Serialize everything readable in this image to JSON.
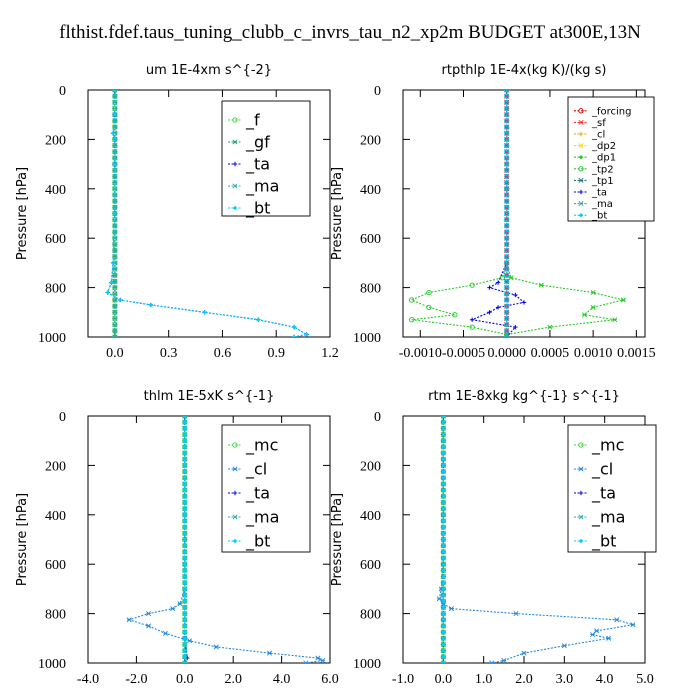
{
  "figure": {
    "title": "flthist.fdef.taus_tuning_clubb_c_invrs_tau_n2_xp2m  BUDGET at300E,13N"
  },
  "colors": {
    "f": "#33dd33",
    "gf": "#229977",
    "ta": "#0000ee",
    "ma": "#33aaaa",
    "bt": "#00ccff",
    "forcing": "#dd0000",
    "sf": "#ff3333",
    "cl": "#ddaa00",
    "dp2": "#ffdd00",
    "dp1": "#22cc22",
    "tp2": "#22cc22",
    "tp1": "#227777",
    "mc": "#33dd33",
    "cl2": "#2288dd"
  },
  "chart_data": [
    {
      "type": "line",
      "title": "um   1E-4xm s^{-2}",
      "ylabel": "Pressure [hPa]",
      "xlim": [
        -0.15,
        1.2
      ],
      "ylim": [
        1000,
        0
      ],
      "xticks": [
        "0.0",
        "0.3",
        "0.6",
        "0.9",
        "1.2"
      ],
      "xtick_values": [
        0,
        0.3,
        0.6,
        0.9,
        1.2
      ],
      "yticks": [
        "0",
        "200",
        "400",
        "600",
        "800",
        "1000"
      ],
      "ytick_values": [
        0,
        200,
        400,
        600,
        800,
        1000
      ],
      "legend": {
        "position": "top-right",
        "entries": [
          "_f",
          "_gf",
          "_ta",
          "_ma",
          "_bt"
        ]
      },
      "series": [
        {
          "name": "_f",
          "color": "f",
          "y": [
            0,
            100,
            200,
            300,
            400,
            500,
            600,
            700,
            800,
            900,
            1000
          ],
          "x": [
            0,
            0,
            0,
            0,
            0,
            0,
            0,
            0,
            0,
            0,
            0
          ]
        },
        {
          "name": "_gf",
          "color": "gf",
          "y": [
            0,
            100,
            200,
            300,
            400,
            500,
            600,
            700,
            800,
            900,
            1000
          ],
          "x": [
            0,
            0,
            0,
            0,
            0,
            0,
            0,
            0,
            0,
            0,
            0
          ]
        },
        {
          "name": "_ta",
          "color": "ta",
          "y": [
            0,
            100,
            175,
            200,
            300,
            500,
            700,
            780,
            820,
            850,
            870,
            900,
            930,
            960,
            990,
            1000
          ],
          "x": [
            0,
            0,
            -0.01,
            0,
            0,
            0,
            -0.01,
            -0.02,
            -0.04,
            0.03,
            0.2,
            0.5,
            0.8,
            1.0,
            1.07,
            1.0
          ]
        },
        {
          "name": "_ma",
          "color": "ma",
          "y": [
            0,
            200,
            400,
            600,
            800,
            1000
          ],
          "x": [
            0,
            0,
            0,
            0,
            0,
            0
          ]
        },
        {
          "name": "_bt",
          "color": "bt",
          "y": [
            0,
            100,
            175,
            200,
            300,
            500,
            700,
            780,
            820,
            850,
            870,
            900,
            930,
            960,
            990,
            1000
          ],
          "x": [
            0,
            0,
            -0.01,
            0,
            0,
            0,
            -0.01,
            -0.02,
            -0.04,
            0.03,
            0.2,
            0.5,
            0.8,
            1.0,
            1.07,
            1.0
          ]
        }
      ]
    },
    {
      "type": "line",
      "title": "rtpthlp   1E-4x(kg K)/(kg s)",
      "ylabel": "Pressure [hPa]",
      "xlim": [
        -0.0012,
        0.0016
      ],
      "ylim": [
        1000,
        0
      ],
      "xticks": [
        "-0.0010",
        "-0.0005",
        "0.0000",
        "0.0005",
        "0.0010",
        "0.0015"
      ],
      "xtick_values": [
        -0.001,
        -0.0005,
        0,
        0.0005,
        0.001,
        0.0015
      ],
      "yticks": [
        "0",
        "200",
        "400",
        "600",
        "800",
        "1000"
      ],
      "ytick_values": [
        0,
        200,
        400,
        600,
        800,
        1000
      ],
      "legend": {
        "position": "top-right",
        "entries": [
          "_forcing",
          "_sf",
          "_cl",
          "_dp2",
          "_dp1",
          "_tp2",
          "_tp1",
          "_ta",
          "_ma",
          "_bt"
        ]
      },
      "series": [
        {
          "name": "_dp1",
          "color": "dp1",
          "y": [
            0,
            400,
            700,
            760,
            790,
            820,
            850,
            880,
            910,
            930,
            960,
            990,
            1000
          ],
          "x": [
            0,
            0,
            0,
            -5e-05,
            -0.0004,
            -0.0009,
            -0.0011,
            -0.0009,
            -0.0006,
            -0.0011,
            -0.0004,
            0,
            0
          ]
        },
        {
          "name": "_tp2",
          "color": "tp2",
          "y": [
            0,
            400,
            700,
            760,
            790,
            820,
            850,
            880,
            910,
            930,
            960,
            990,
            1000
          ],
          "x": [
            0,
            0,
            0,
            5e-05,
            0.0004,
            0.001,
            0.00135,
            0.001,
            0.0009,
            0.00125,
            0.0005,
            0,
            0
          ]
        },
        {
          "name": "_ta",
          "color": "ta",
          "y": [
            0,
            700,
            780,
            800,
            830,
            860,
            880,
            900,
            930,
            960,
            1000
          ],
          "x": [
            0,
            0,
            -0.0001,
            -0.0002,
            0.0001,
            0.0002,
            -0.0001,
            -0.0002,
            -0.0004,
            0.0001,
            0
          ]
        },
        {
          "name": "_forcing",
          "color": "forcing",
          "y": [
            0,
            200,
            400,
            600,
            800,
            1000
          ],
          "x": [
            0,
            0,
            0,
            0,
            0,
            0
          ]
        },
        {
          "name": "_sf",
          "color": "sf",
          "y": [
            0,
            200,
            400,
            600,
            800,
            1000
          ],
          "x": [
            0,
            0,
            0,
            0,
            0,
            0
          ]
        },
        {
          "name": "_bt",
          "color": "bt",
          "y": [
            0,
            200,
            400,
            600,
            800,
            1000
          ],
          "x": [
            0,
            0,
            0,
            0,
            0,
            0
          ]
        }
      ]
    },
    {
      "type": "line",
      "title": "thlm   1E-5xK s^{-1}",
      "ylabel": "Pressure [hPa]",
      "xlim": [
        -4.0,
        6.0
      ],
      "ylim": [
        1000,
        0
      ],
      "xticks": [
        "-4.0",
        "-2.0",
        "0.0",
        "2.0",
        "4.0",
        "6.0"
      ],
      "xtick_values": [
        -4,
        -2,
        0,
        2,
        4,
        6
      ],
      "yticks": [
        "0",
        "200",
        "400",
        "600",
        "800",
        "1000"
      ],
      "ytick_values": [
        0,
        200,
        400,
        600,
        800,
        1000
      ],
      "legend": {
        "position": "top-right",
        "entries": [
          "_mc",
          "_cl",
          "_ta",
          "_ma",
          "_bt"
        ]
      },
      "series": [
        {
          "name": "_mc",
          "color": "mc",
          "y": [
            0,
            100,
            200,
            300,
            400,
            500,
            600,
            700,
            800,
            900,
            1000
          ],
          "x": [
            0,
            0,
            0,
            0,
            0,
            0,
            0,
            0,
            0,
            0,
            0
          ]
        },
        {
          "name": "_cl",
          "color": "cl2",
          "y": [
            0,
            200,
            400,
            600,
            700,
            760,
            780,
            800,
            825,
            850,
            880,
            910,
            935,
            960,
            980,
            990,
            1000
          ],
          "x": [
            0,
            0,
            0,
            0,
            0,
            -0.2,
            -0.5,
            -1.5,
            -2.3,
            -1.5,
            -0.8,
            0.2,
            1.3,
            3.5,
            5.5,
            5.7,
            5.0
          ]
        },
        {
          "name": "_ta",
          "color": "ta",
          "y": [
            0,
            500,
            900,
            980,
            1000
          ],
          "x": [
            0,
            0,
            0,
            0.1,
            0
          ]
        },
        {
          "name": "_ma",
          "color": "ma",
          "y": [
            0,
            200,
            400,
            600,
            800,
            1000
          ],
          "x": [
            0,
            0,
            0,
            0,
            0,
            0
          ]
        },
        {
          "name": "_bt",
          "color": "bt",
          "y": [
            0,
            200,
            400,
            600,
            800,
            1000
          ],
          "x": [
            0,
            0,
            0,
            0,
            0,
            0
          ]
        }
      ]
    },
    {
      "type": "line",
      "title": "rtm   1E-8xkg kg^{-1} s^{-1}",
      "ylabel": "Pressure [hPa]",
      "xlim": [
        -1.0,
        5.0
      ],
      "ylim": [
        1000,
        0
      ],
      "xticks": [
        "-1.0",
        "0.0",
        "1.0",
        "2.0",
        "3.0",
        "4.0",
        "5.0"
      ],
      "xtick_values": [
        -1,
        0,
        1,
        2,
        3,
        4,
        5
      ],
      "yticks": [
        "0",
        "200",
        "400",
        "600",
        "800",
        "1000"
      ],
      "ytick_values": [
        0,
        200,
        400,
        600,
        800,
        1000
      ],
      "legend": {
        "position": "top-right",
        "entries": [
          "_mc",
          "_cl",
          "_ta",
          "_ma",
          "_bt"
        ]
      },
      "series": [
        {
          "name": "_mc",
          "color": "mc",
          "y": [
            0,
            100,
            200,
            300,
            400,
            500,
            600,
            700,
            800,
            900,
            1000
          ],
          "x": [
            0,
            0,
            0,
            0,
            0,
            0,
            0,
            0,
            0,
            0,
            0
          ]
        },
        {
          "name": "_cl",
          "color": "cl2",
          "y": [
            0,
            200,
            400,
            600,
            700,
            740,
            760,
            780,
            800,
            825,
            845,
            870,
            885,
            900,
            930,
            960,
            990,
            1000
          ],
          "x": [
            0,
            0,
            0,
            0,
            -0.05,
            -0.1,
            0,
            0.2,
            1.8,
            4.3,
            4.7,
            3.8,
            3.7,
            4.1,
            3.0,
            2.0,
            1.5,
            1.2
          ]
        },
        {
          "name": "_ta",
          "color": "ta",
          "y": [
            0,
            500,
            900,
            1000
          ],
          "x": [
            0,
            0,
            0,
            0
          ]
        },
        {
          "name": "_ma",
          "color": "ma",
          "y": [
            0,
            200,
            400,
            600,
            800,
            1000
          ],
          "x": [
            0,
            0,
            0,
            0,
            0,
            0
          ]
        },
        {
          "name": "_bt",
          "color": "bt",
          "y": [
            0,
            200,
            400,
            600,
            800,
            1000
          ],
          "x": [
            0,
            0,
            0,
            0,
            0,
            0
          ]
        }
      ]
    }
  ]
}
